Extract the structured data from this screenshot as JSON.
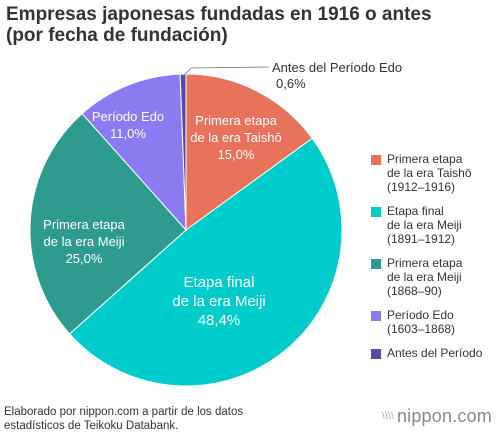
{
  "title_lines": [
    "Empresas japonesas fundadas en 1916 o antes",
    "(por fecha de fundación)"
  ],
  "chart_data": {
    "type": "pie",
    "title": "Empresas japonesas fundadas en 1916 o antes (por fecha de fundación)",
    "slices": [
      {
        "key": "taisho",
        "label_lines": [
          "Primera etapa",
          "de la era Taishō"
        ],
        "value_label": "15,0%",
        "value": 15.0,
        "color": "#e9725b",
        "legend_lines": [
          "Primera etapa",
          "de la era Taishō",
          "(1912–1916)"
        ]
      },
      {
        "key": "meiji_final",
        "label_lines": [
          "Etapa final",
          "de la era Meiji"
        ],
        "value_label": "48,4%",
        "value": 48.4,
        "color": "#00cccc",
        "legend_lines": [
          "Etapa final",
          "de la era Meiji",
          "(1891–1912)"
        ]
      },
      {
        "key": "meiji_early",
        "label_lines": [
          "Primera etapa",
          "de la era Meiji"
        ],
        "value_label": "25,0%",
        "value": 25.0,
        "color": "#2f9b8f",
        "legend_lines": [
          "Primera etapa",
          "de la era Meiji",
          "(1868–90)"
        ]
      },
      {
        "key": "edo",
        "label_lines": [
          "Período Edo"
        ],
        "value_label": "11,0%",
        "value": 11.0,
        "color": "#8b7bf0",
        "legend_lines": [
          "Período Edo",
          "(1603–1868)"
        ]
      },
      {
        "key": "pre_edo",
        "label_lines": [
          "Antes del Período Edo"
        ],
        "value_label": "0,6%",
        "value": 0.6,
        "color": "#5649a8",
        "legend_lines": [
          "Antes del Período"
        ]
      }
    ]
  },
  "footer_lines": [
    "Elaborado por nippon.com a partir de los datos",
    "estadísticos de Teikoku Databank."
  ],
  "logo": {
    "mark": "\\\\\\\\",
    "text": "nippon.com"
  }
}
